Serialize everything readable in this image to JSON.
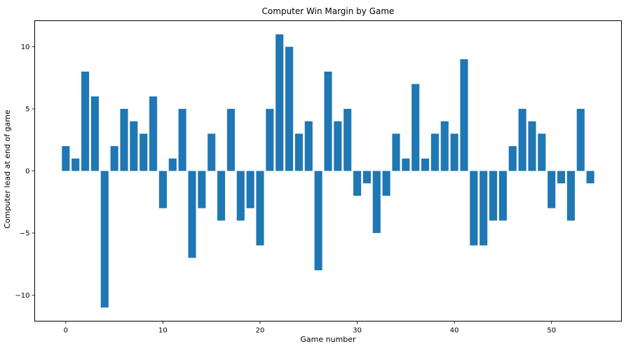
{
  "chart_data": {
    "type": "bar",
    "title": "Computer Win Margin by Game",
    "xlabel": "Game number",
    "ylabel": "Computer lead at end of game",
    "x": [
      0,
      1,
      2,
      3,
      4,
      5,
      6,
      7,
      8,
      9,
      10,
      11,
      12,
      13,
      14,
      15,
      16,
      17,
      18,
      19,
      20,
      21,
      22,
      23,
      24,
      25,
      26,
      27,
      28,
      29,
      30,
      31,
      32,
      33,
      34,
      35,
      36,
      37,
      38,
      39,
      40,
      41,
      42,
      43,
      44,
      45,
      46,
      47,
      48,
      49,
      50,
      51,
      52,
      53,
      54
    ],
    "values": [
      2,
      1,
      8,
      6,
      -11,
      2,
      5,
      4,
      3,
      6,
      -3,
      1,
      5,
      -7,
      -3,
      3,
      -4,
      5,
      -4,
      -3,
      -6,
      5,
      11,
      10,
      3,
      4,
      -8,
      8,
      4,
      5,
      -2,
      -1,
      -5,
      -2,
      3,
      1,
      7,
      1,
      3,
      4,
      3,
      9,
      -6,
      -6,
      -4,
      -4,
      2,
      5,
      4,
      3,
      -3,
      -1,
      -4,
      5,
      -1
    ],
    "xlim": [
      -3.2,
      57.2
    ],
    "ylim": [
      -12.1,
      12.1
    ],
    "xticks": [
      "0",
      "10",
      "20",
      "30",
      "40",
      "50"
    ],
    "yticks": [
      "−10",
      "−5",
      "0",
      "5",
      "10"
    ],
    "bar_color": "#1f77b4",
    "grid": false,
    "legend": "none"
  }
}
